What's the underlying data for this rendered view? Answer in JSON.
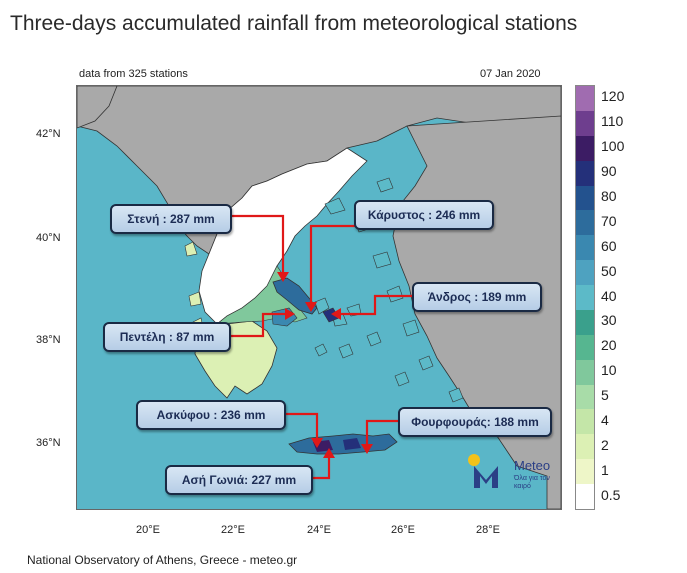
{
  "title": "Three-days accumulated rainfall from meteorological stations",
  "header": {
    "stations": "data from 325 stations",
    "date": "07 Jan 2020"
  },
  "axes": {
    "lat_labels": [
      "42°N",
      "40°N",
      "38°N",
      "36°N"
    ],
    "lon_labels": [
      "20°E",
      "22°E",
      "24°E",
      "26°E",
      "28°E"
    ]
  },
  "legend": {
    "labels": [
      "120",
      "110",
      "100",
      "90",
      "80",
      "70",
      "60",
      "50",
      "40",
      "30",
      "20",
      "10",
      "5",
      "4",
      "2",
      "1",
      "0.5"
    ],
    "colors": [
      "#a06cb0",
      "#6e3e8e",
      "#3c1c64",
      "#24307a",
      "#23528e",
      "#2d6c9c",
      "#3a88b0",
      "#4ea2c0",
      "#5cbac8",
      "#3aa08c",
      "#56b690",
      "#80c89c",
      "#a8dca8",
      "#c4e6a8",
      "#dcf0b4",
      "#eef6c8",
      "#ffffff"
    ]
  },
  "callouts": {
    "steni": "Στενή : 287 mm",
    "karystos": "Κάρυστος : 246 mm",
    "andros": "Άνδρος : 189 mm",
    "penteli": "Πεντέλη : 87 mm",
    "askyfou": "Ασκύφου : 236 mm",
    "fourfouras": "Φουρφουράς: 188 mm",
    "asi_gonia": "Ασή Γωνιά: 227 mm"
  },
  "logo": {
    "name": "Meteo",
    "tagline": "Όλα για τον καιρό"
  },
  "footer": "National Observatory of Athens, Greece - meteo.gr"
}
